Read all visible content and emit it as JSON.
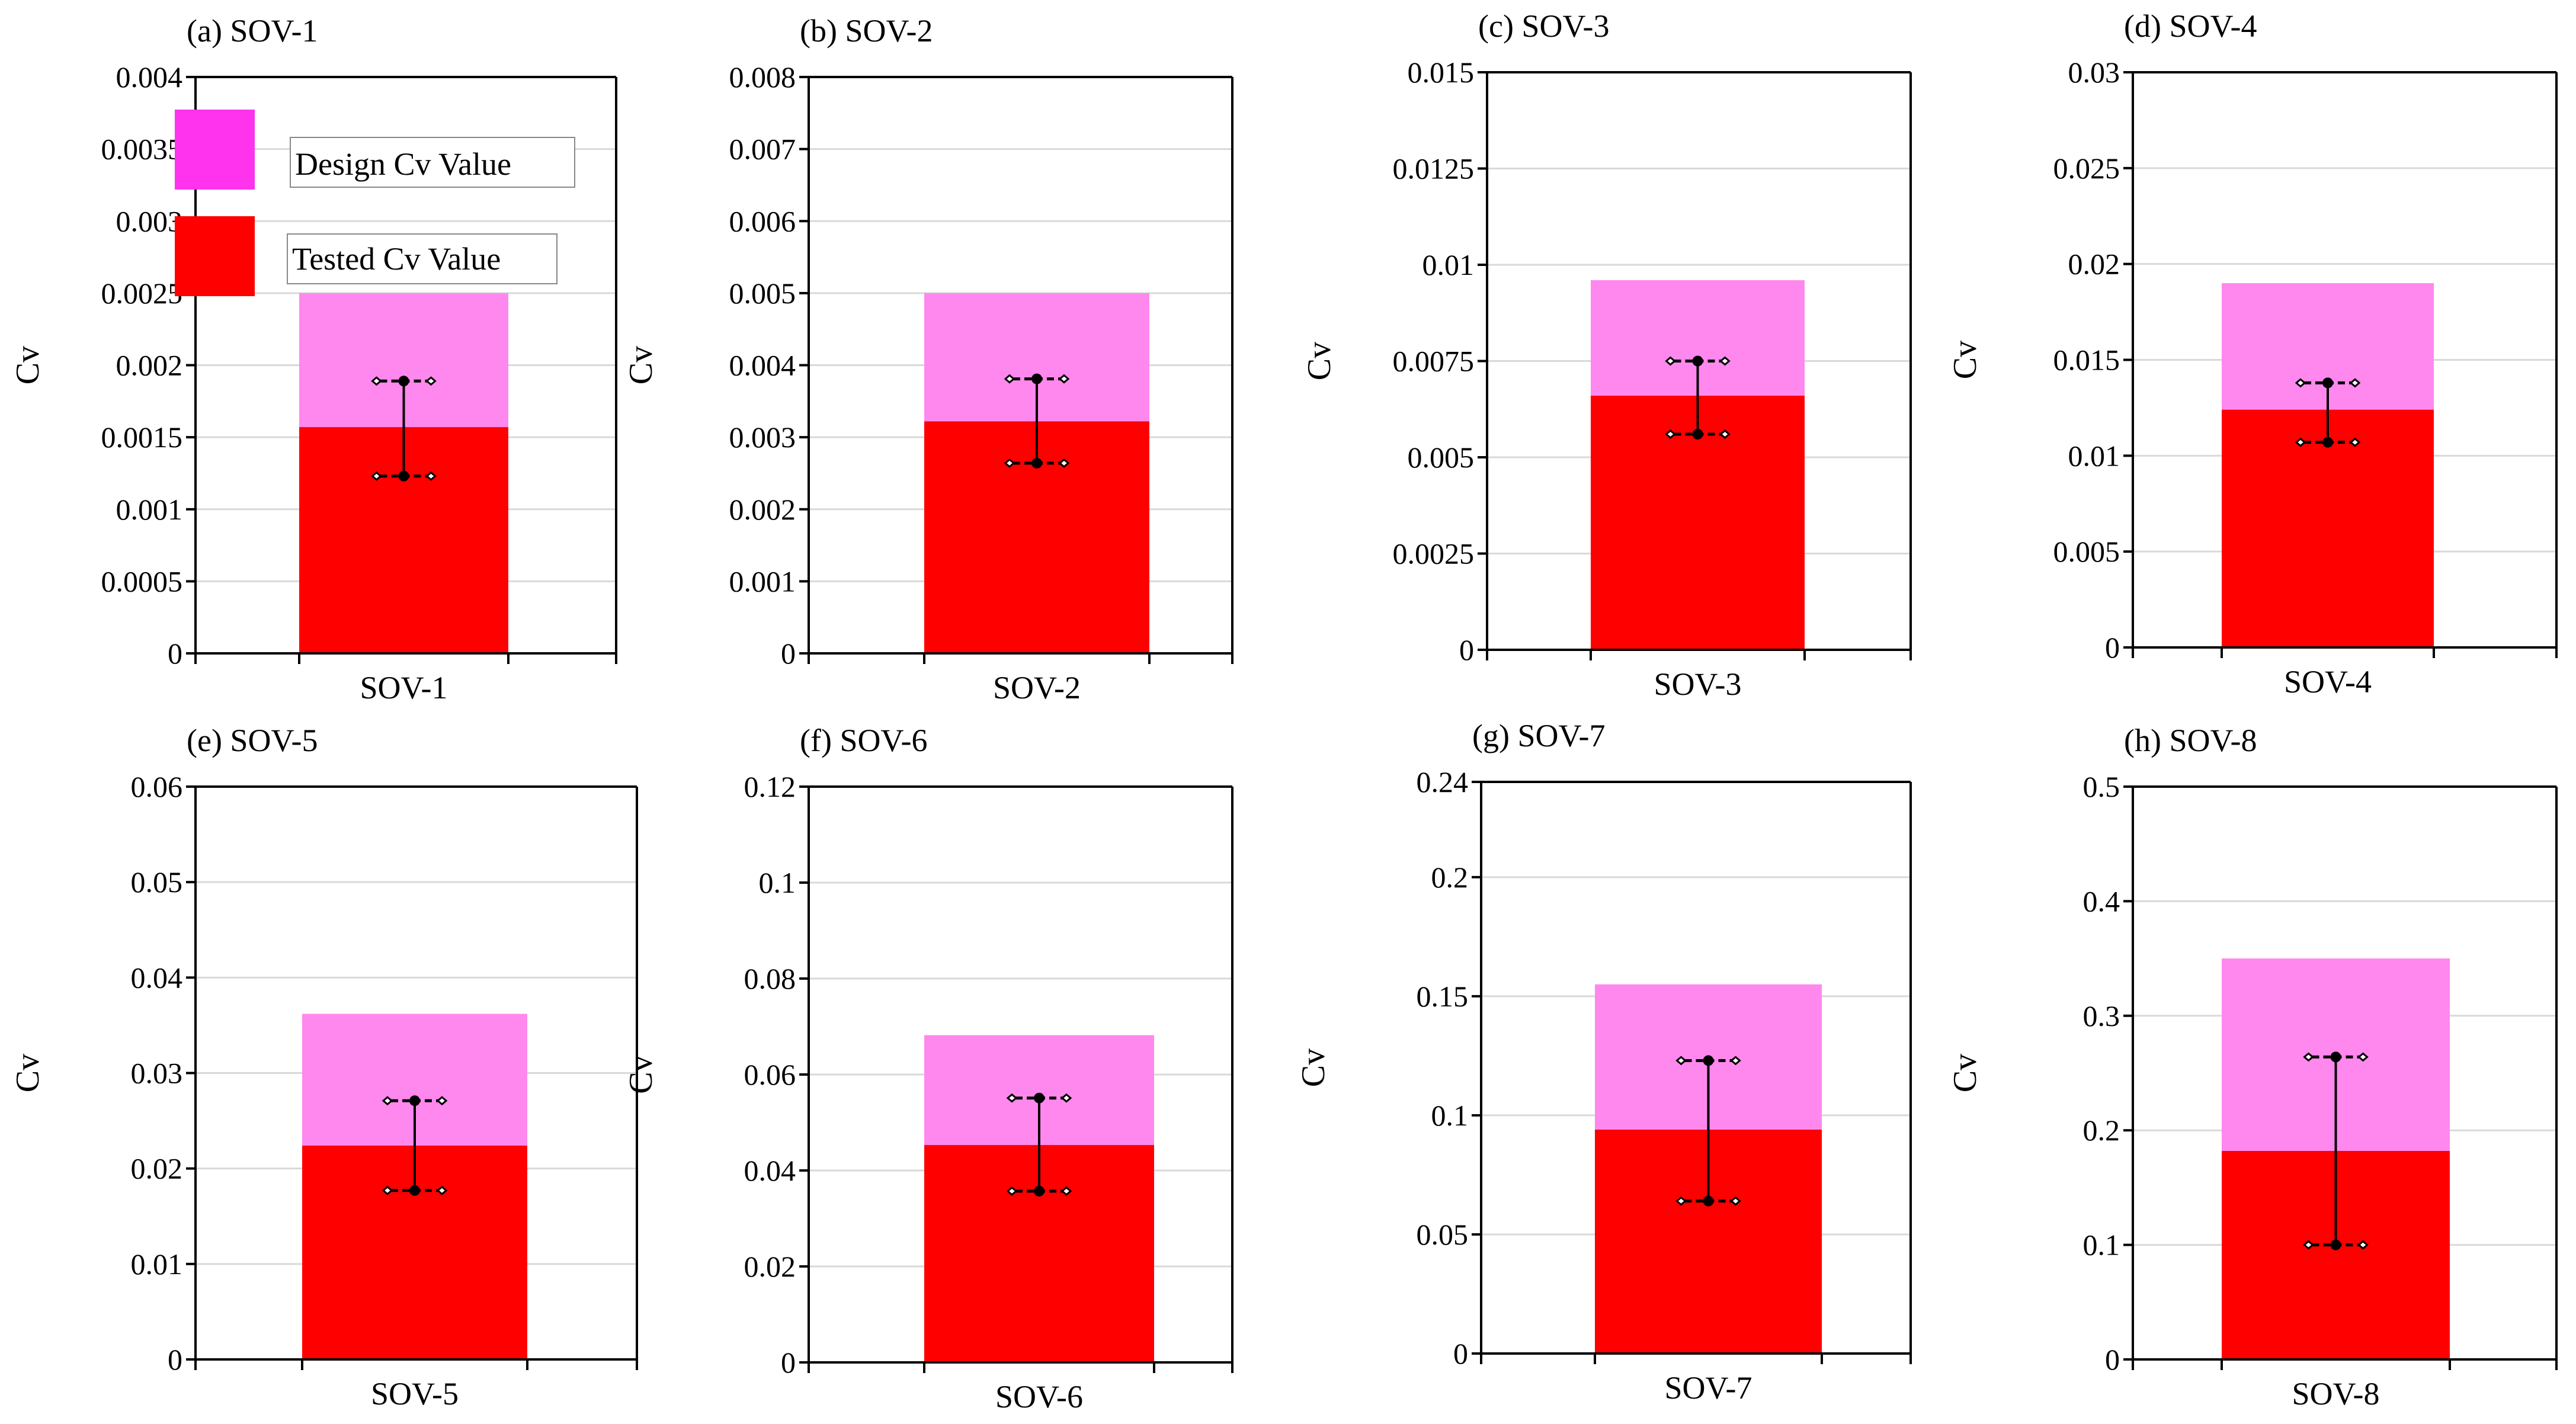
{
  "colors": {
    "design": "#ff88ee",
    "tested": "#ff0000",
    "legend_design": "#ff33ee",
    "grid": "#d9d9d9",
    "axis": "#000000"
  },
  "legend": {
    "design_label": "Design Cv Value",
    "tested_label": "Tested Cv Value"
  },
  "chart_data": [
    {
      "type": "bar",
      "title": "(a) SOV-1",
      "ylabel": "Cv",
      "category": "SOV-1",
      "ylim": [
        0,
        0.004
      ],
      "yticks": [
        0,
        0.0005,
        0.001,
        0.0015,
        0.002,
        0.0025,
        0.003,
        0.0035,
        0.004
      ],
      "ytick_labels": [
        "0",
        "0.0005",
        "0.001",
        "0.0015",
        "0.002",
        "0.0025",
        "0.003",
        "0.0035",
        "0.004"
      ],
      "design": 0.0025,
      "tested": 0.00157,
      "error_low": 0.00123,
      "error_high": 0.00189,
      "has_legend": true
    },
    {
      "type": "bar",
      "title": "(b) SOV-2",
      "ylabel": "Cv",
      "category": "SOV-2",
      "ylim": [
        0,
        0.008
      ],
      "yticks": [
        0,
        0.001,
        0.002,
        0.003,
        0.004,
        0.005,
        0.006,
        0.007,
        0.008
      ],
      "ytick_labels": [
        "0",
        "0.001",
        "0.002",
        "0.003",
        "0.004",
        "0.005",
        "0.006",
        "0.007",
        "0.008"
      ],
      "design": 0.005,
      "tested": 0.00322,
      "error_low": 0.00264,
      "error_high": 0.00381,
      "has_legend": false
    },
    {
      "type": "bar",
      "title": "(c) SOV-3",
      "ylabel": "Cv",
      "category": "SOV-3",
      "ylim": [
        0,
        0.015
      ],
      "yticks": [
        0,
        0.0025,
        0.005,
        0.0075,
        0.01,
        0.0125,
        0.015
      ],
      "ytick_labels": [
        "0",
        "0.0025",
        "0.005",
        "0.0075",
        "0.01",
        "0.0125",
        "0.015"
      ],
      "design": 0.0096,
      "tested": 0.0066,
      "error_low": 0.0056,
      "error_high": 0.0075,
      "has_legend": false
    },
    {
      "type": "bar",
      "title": "(d) SOV-4",
      "ylabel": "Cv",
      "category": "SOV-4",
      "ylim": [
        0,
        0.03
      ],
      "yticks": [
        0,
        0.005,
        0.01,
        0.015,
        0.02,
        0.025,
        0.03
      ],
      "ytick_labels": [
        "0",
        "0.005",
        "0.01",
        "0.015",
        "0.02",
        "0.025",
        "0.03"
      ],
      "design": 0.019,
      "tested": 0.0124,
      "error_low": 0.0107,
      "error_high": 0.0138,
      "has_legend": false
    },
    {
      "type": "bar",
      "title": "(e) SOV-5",
      "ylabel": "Cv",
      "category": "SOV-5",
      "ylim": [
        0,
        0.06
      ],
      "yticks": [
        0,
        0.01,
        0.02,
        0.03,
        0.04,
        0.05,
        0.06
      ],
      "ytick_labels": [
        "0",
        "0.01",
        "0.02",
        "0.03",
        "0.04",
        "0.05",
        "0.06"
      ],
      "design": 0.0362,
      "tested": 0.0224,
      "error_low": 0.0177,
      "error_high": 0.0271,
      "has_legend": false
    },
    {
      "type": "bar",
      "title": "(f) SOV-6",
      "ylabel": "Cv",
      "category": "SOV-6",
      "ylim": [
        0,
        0.12
      ],
      "yticks": [
        0,
        0.02,
        0.04,
        0.06,
        0.08,
        0.1,
        0.12
      ],
      "ytick_labels": [
        "0",
        "0.02",
        "0.04",
        "0.06",
        "0.08",
        "0.1",
        "0.12"
      ],
      "design": 0.0682,
      "tested": 0.0453,
      "error_low": 0.0357,
      "error_high": 0.0551,
      "has_legend": false
    },
    {
      "type": "bar",
      "title": "(g) SOV-7",
      "ylabel": "Cv",
      "category": "SOV-7",
      "ylim": [
        0,
        0.24
      ],
      "yticks": [
        0,
        0.05,
        0.1,
        0.15,
        0.2,
        0.24
      ],
      "ytick_labels": [
        "0",
        "0.05",
        "0.1",
        "0.15",
        "0.2",
        "0.24"
      ],
      "design": 0.155,
      "tested": 0.094,
      "error_low": 0.064,
      "error_high": 0.123,
      "has_legend": false
    },
    {
      "type": "bar",
      "title": "(h) SOV-8",
      "ylabel": "Cv",
      "category": "SOV-8",
      "ylim": [
        0,
        0.5
      ],
      "yticks": [
        0,
        0.1,
        0.2,
        0.3,
        0.4,
        0.5
      ],
      "ytick_labels": [
        "0",
        "0.1",
        "0.2",
        "0.3",
        "0.4",
        "0.5"
      ],
      "design": 0.35,
      "tested": 0.182,
      "error_low": 0.1,
      "error_high": 0.264,
      "has_legend": false
    }
  ]
}
